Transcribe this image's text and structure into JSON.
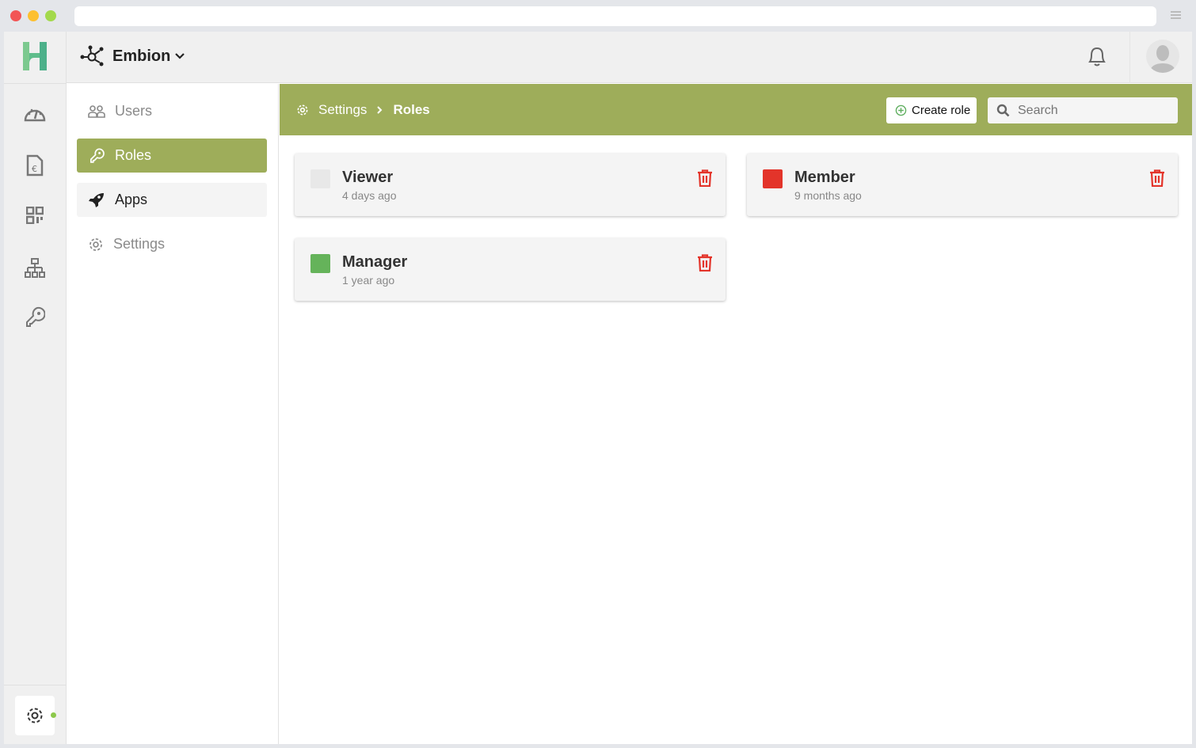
{
  "window": {
    "controls": [
      "#f25555",
      "#fdc02f",
      "#a3d94c"
    ]
  },
  "header": {
    "org_name": "Embion"
  },
  "subnav": {
    "items": [
      {
        "label": "Users",
        "active": false
      },
      {
        "label": "Roles",
        "active": true
      },
      {
        "label": "Apps",
        "active": false
      },
      {
        "label": "Settings",
        "active": false
      }
    ]
  },
  "breadcrumb": {
    "parent": "Settings",
    "current": "Roles"
  },
  "toolbar": {
    "create_label": "Create role",
    "search_placeholder": "Search"
  },
  "roles": [
    {
      "name": "Viewer",
      "time": "4 days ago",
      "color": "#e8e8e8"
    },
    {
      "name": "Member",
      "time": "9 months ago",
      "color": "#e3342a"
    },
    {
      "name": "Manager",
      "time": "1 year ago",
      "color": "#65b35a"
    }
  ],
  "colors": {
    "accent": "#9ead5a",
    "danger": "#e3342a",
    "status_online": "#8cc84b"
  }
}
